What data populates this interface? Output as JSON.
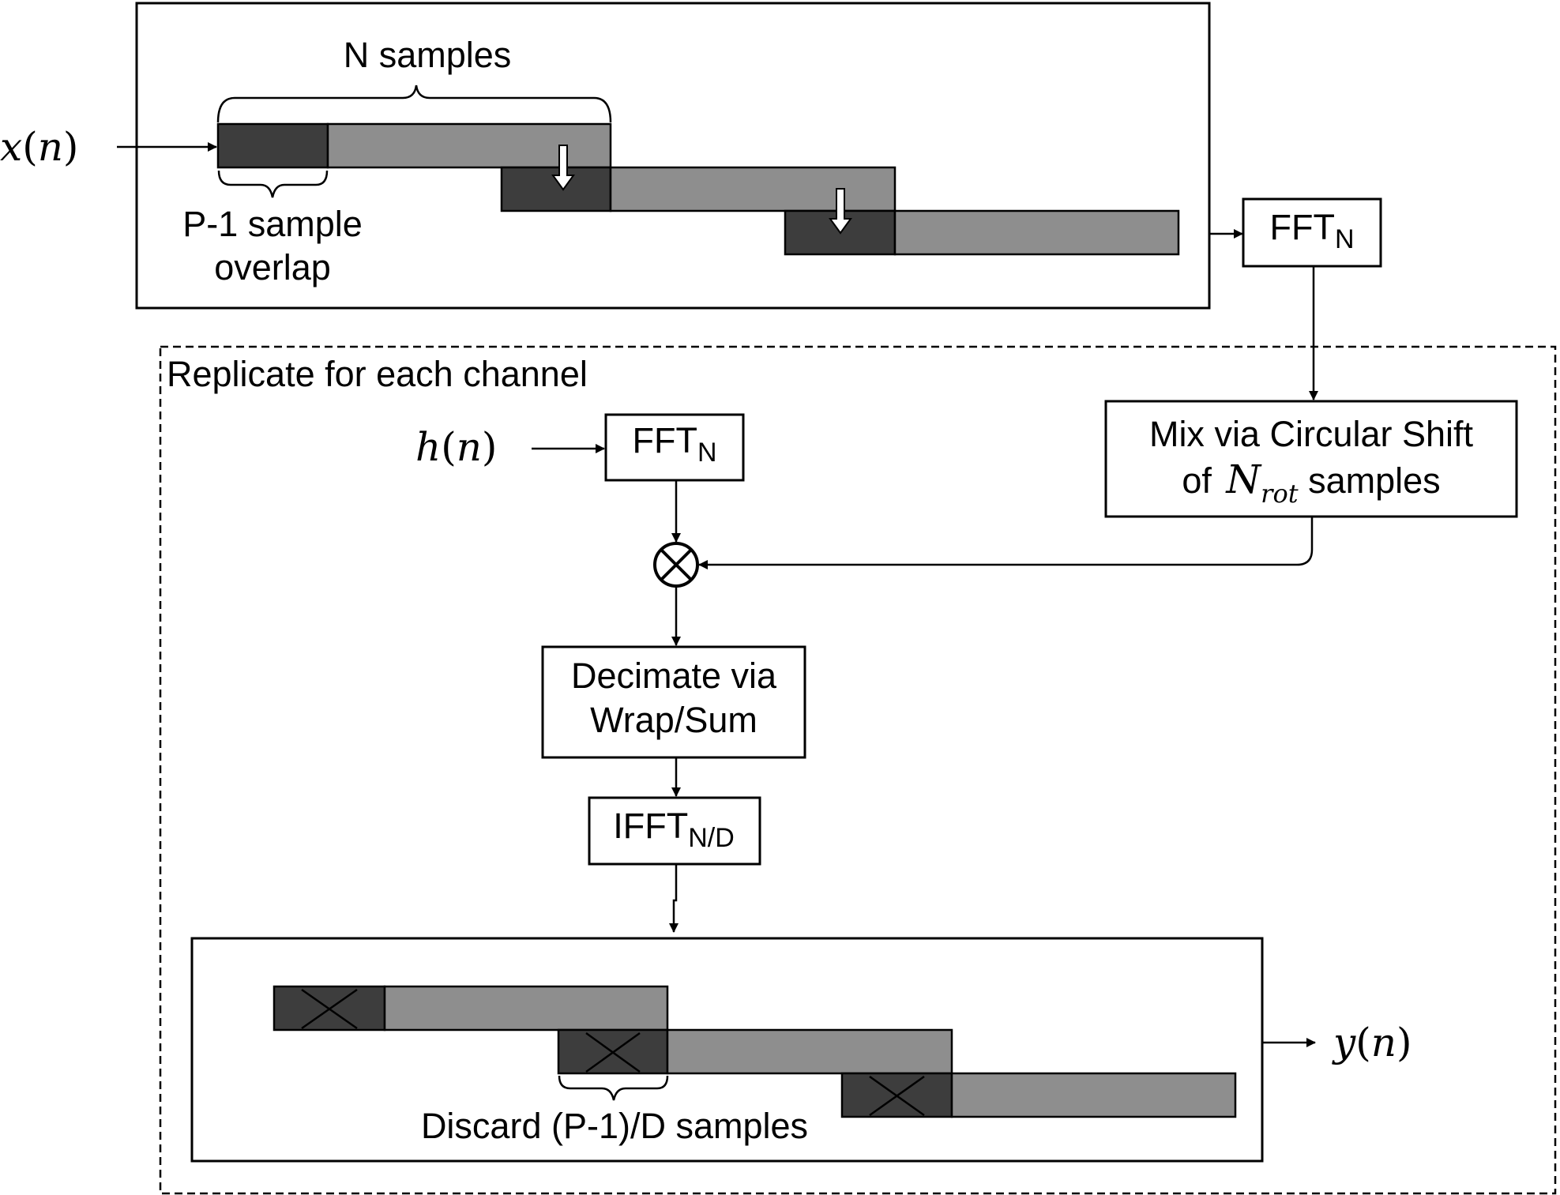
{
  "input": {
    "symbol": "x",
    "paren_open": "(",
    "var": "n",
    "paren_close": ")"
  },
  "filter": {
    "symbol": "h",
    "paren_open": "(",
    "var": "n",
    "paren_close": ")"
  },
  "output": {
    "symbol": "y",
    "paren_open": "(",
    "var": "n",
    "paren_close": ")"
  },
  "input_blocks": {
    "n_samples_label": "N samples",
    "overlap_label_line1": "P-1 sample",
    "overlap_label_line2": "overlap"
  },
  "fft_top": {
    "main": "FFT",
    "sub": "N"
  },
  "fft_filter": {
    "main": "FFT",
    "sub": "N"
  },
  "replicate_label": "Replicate for each channel",
  "mix": {
    "line1": "Mix via Circular Shift",
    "line2_prefix": "of ",
    "line2_symbol": "N",
    "line2_subscript": "rot",
    "line2_suffix": " samples"
  },
  "multiply_icon": "circled-times",
  "decimate": {
    "line1": "Decimate via",
    "line2": "Wrap/Sum"
  },
  "ifft": {
    "main": "IFFT",
    "sub": "N/D"
  },
  "output_blocks": {
    "discard_label": "Discard (P-1)/D samples"
  }
}
